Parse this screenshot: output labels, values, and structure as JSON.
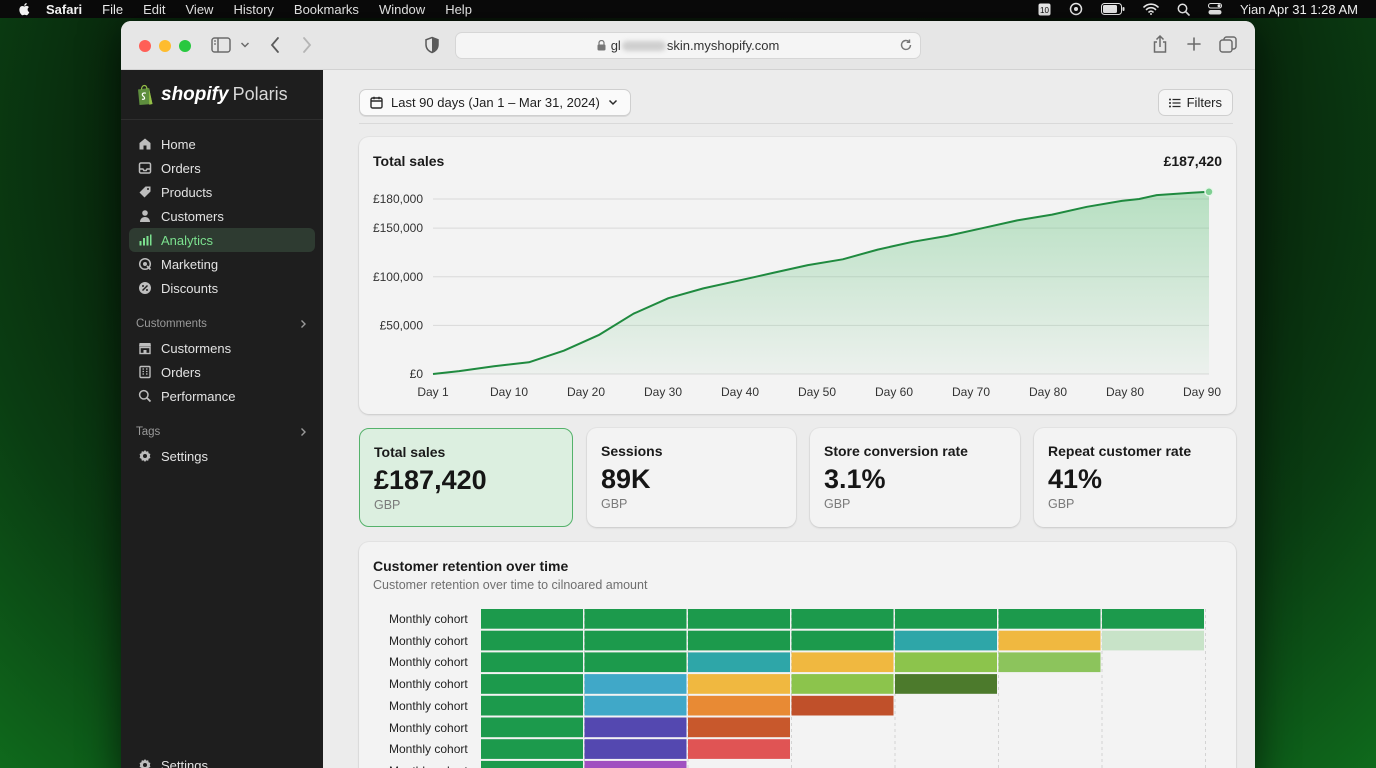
{
  "menubar": {
    "app": "Safari",
    "items": [
      "File",
      "Edit",
      "View",
      "History",
      "Bookmarks",
      "Window",
      "Help"
    ],
    "clock": "Yian Apr 31  1:28 AM"
  },
  "browser": {
    "url_prefix": "gl",
    "url_suffix": "skin.myshopify.com"
  },
  "sidebar": {
    "brand_bold": "shopify",
    "brand_light": "Polaris",
    "items": [
      {
        "label": "Home",
        "icon": "home-icon"
      },
      {
        "label": "Orders",
        "icon": "inbox-icon"
      },
      {
        "label": "Products",
        "icon": "tag-icon"
      },
      {
        "label": "Customers",
        "icon": "person-icon"
      },
      {
        "label": "Analytics",
        "icon": "bar-chart-icon",
        "active": true
      },
      {
        "label": "Marketing",
        "icon": "target-icon"
      },
      {
        "label": "Discounts",
        "icon": "discount-icon"
      }
    ],
    "section1": {
      "title": "Customments",
      "items": [
        {
          "label": "Custormens",
          "icon": "store-icon"
        },
        {
          "label": "Orders",
          "icon": "building-icon"
        },
        {
          "label": "Performance",
          "icon": "search-icon"
        }
      ]
    },
    "section2": {
      "title": "Tags",
      "items": [
        {
          "label": "Settings",
          "icon": "gear-icon"
        }
      ]
    },
    "footer_settings": "Settings"
  },
  "toolbar": {
    "date_range": "Last 90 days (Jan 1 – Mar 31, 2024)",
    "filters": "Filters"
  },
  "sales_card": {
    "title": "Total sales",
    "total": "£187,420"
  },
  "metrics": [
    {
      "label": "Total sales",
      "value": "£187,420",
      "unit": "GBP",
      "selected": true
    },
    {
      "label": "Sessions",
      "value": "89K",
      "unit": "GBP"
    },
    {
      "label": "Store conversion rate",
      "value": "3.1%",
      "unit": "GBP"
    },
    {
      "label": "Repeat customer rate",
      "value": "41%",
      "unit": "GBP"
    }
  ],
  "retention": {
    "title": "Customer retention over time",
    "subtitle": "Customer retention over time to cilnoared amount",
    "row_label": "Monthly cohort",
    "rows": [
      [
        "#1c9a4c",
        "#1c9a4c",
        "#1c9a4c",
        "#1c9a4c",
        "#1c9a4c",
        "#1c9a4c",
        "#1c9a4c"
      ],
      [
        "#1c9a4c",
        "#1c9a4c",
        "#1c9a4c",
        "#1c9a4c",
        "#2ea6a8",
        "#f0b840",
        "#c8e3c8"
      ],
      [
        "#1c9a4c",
        "#1c9a4c",
        "#2ea6a8",
        "#f0b840",
        "#8cc44c",
        "#8cc45c"
      ],
      [
        "#1c9a4c",
        "#40a8c8",
        "#f0b840",
        "#8cc44c",
        "#4c7a2c"
      ],
      [
        "#1c9a4c",
        "#40a8c8",
        "#e88a34",
        "#c0502a"
      ],
      [
        "#1c9a4c",
        "#5448b0",
        "#c8582c"
      ],
      [
        "#1c9a4c",
        "#5448b0",
        "#e05454"
      ],
      [
        "#1c9a4c",
        "#a050c0"
      ]
    ]
  },
  "chart_data": {
    "type": "area",
    "title": "Total sales",
    "x_tick_labels": [
      "Day 1",
      "Day 10",
      "Day 20",
      "Day 30",
      "Day 40",
      "Day 50",
      "Day 60",
      "Day 70",
      "Day 80",
      "Day 80",
      "Day 90"
    ],
    "y_tick_labels": [
      "£0",
      "£50,000",
      "£100,000",
      "£150,000",
      "£180,000"
    ],
    "ylim": [
      0,
      200000
    ],
    "x": [
      1,
      4,
      8,
      12,
      16,
      20,
      24,
      28,
      32,
      36,
      38,
      40,
      44,
      48,
      52,
      56,
      60,
      64,
      68,
      72,
      76,
      80,
      82,
      84,
      88,
      90
    ],
    "y": [
      0,
      3000,
      8000,
      12000,
      24000,
      40000,
      62000,
      78000,
      88000,
      96000,
      100000,
      104000,
      112000,
      118000,
      128000,
      136000,
      142000,
      150000,
      158000,
      164000,
      172000,
      178000,
      180000,
      184000,
      186500,
      187420
    ],
    "color": "#1f8a3f",
    "grid": true
  }
}
